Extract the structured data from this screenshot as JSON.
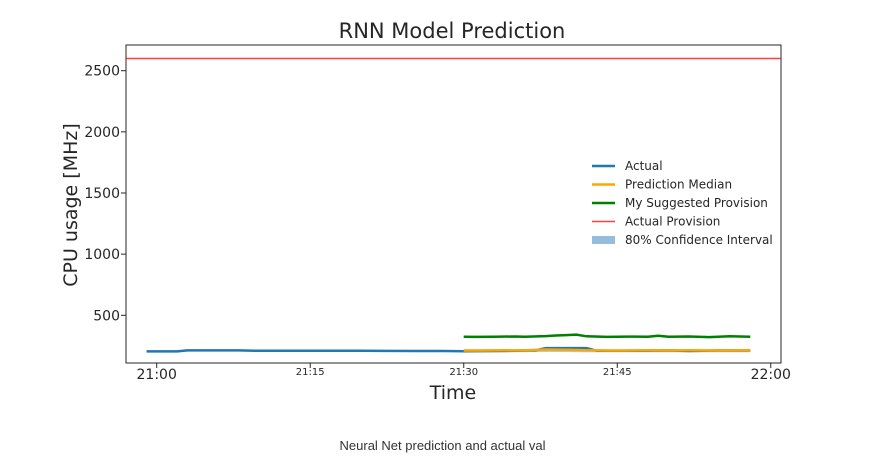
{
  "chart_data": {
    "type": "line",
    "title": "RNN Model Prediction",
    "xlabel": "Time",
    "ylabel": "CPU usage [MHz]",
    "xlim": [
      "20:57",
      "22:01"
    ],
    "ylim": [
      110,
      2710
    ],
    "x_ticks": [
      {
        "t": "21:00",
        "label": "21:00",
        "size": "large"
      },
      {
        "t": "21:15",
        "label": "21:15",
        "size": "small"
      },
      {
        "t": "21:30",
        "label": "21:30",
        "size": "small"
      },
      {
        "t": "21:45",
        "label": "21:45",
        "size": "small"
      },
      {
        "t": "22:00",
        "label": "22:00",
        "size": "large"
      }
    ],
    "y_ticks": [
      500,
      1000,
      1500,
      2000,
      2500
    ],
    "grid": false,
    "legend_position": "center-right",
    "series": [
      {
        "name": "Actual",
        "color": "#1f77b4",
        "x": [
          "20:59",
          "21:02",
          "21:03",
          "21:08",
          "21:10",
          "21:15",
          "21:20",
          "21:25",
          "21:28",
          "21:30",
          "21:35",
          "21:37",
          "21:38",
          "21:40",
          "21:42",
          "21:43",
          "21:45",
          "21:50",
          "21:52",
          "21:55",
          "21:58"
        ],
        "values": [
          205,
          205,
          213,
          213,
          210,
          210,
          210,
          208,
          208,
          206,
          210,
          213,
          232,
          232,
          232,
          210,
          210,
          212,
          208,
          212,
          212
        ]
      },
      {
        "name": "Prediction Median",
        "color": "#ffa500",
        "x": [
          "21:30",
          "21:32",
          "21:34",
          "21:36",
          "21:38",
          "21:40",
          "21:42",
          "21:44",
          "21:46",
          "21:48",
          "21:50",
          "21:52",
          "21:54",
          "21:56",
          "21:58"
        ],
        "values": [
          212,
          212,
          214,
          213,
          220,
          218,
          214,
          212,
          212,
          214,
          212,
          214,
          212,
          213,
          215
        ]
      },
      {
        "name": "My Suggested Provision",
        "color": "#008000",
        "x": [
          "21:30",
          "21:31",
          "21:33",
          "21:35",
          "21:36",
          "21:38",
          "21:39",
          "21:40",
          "21:41",
          "21:42",
          "21:44",
          "21:46",
          "21:48",
          "21:49",
          "21:50",
          "21:52",
          "21:54",
          "21:56",
          "21:58"
        ],
        "values": [
          325,
          323,
          325,
          327,
          324,
          330,
          335,
          338,
          342,
          328,
          323,
          326,
          324,
          333,
          325,
          327,
          322,
          328,
          325
        ]
      },
      {
        "name": "Actual Provision",
        "color": "#ff0000",
        "x": [
          "20:57",
          "22:01"
        ],
        "values": [
          2600,
          2600
        ]
      }
    ],
    "confidence_interval": {
      "name": "80% Confidence Interval",
      "color": "#8ab5d8",
      "x": [
        "21:30",
        "21:34",
        "21:38",
        "21:40",
        "21:42",
        "21:46",
        "21:50",
        "21:54",
        "21:58"
      ],
      "lower": [
        198,
        198,
        200,
        200,
        198,
        198,
        198,
        198,
        198
      ],
      "upper": [
        222,
        222,
        226,
        224,
        222,
        222,
        224,
        222,
        224
      ]
    },
    "legend": [
      "Actual",
      "Prediction Median",
      "My Suggested Provision",
      "Actual Provision",
      "80% Confidence Interval"
    ]
  },
  "caption": "Neural Net prediction and actual val"
}
